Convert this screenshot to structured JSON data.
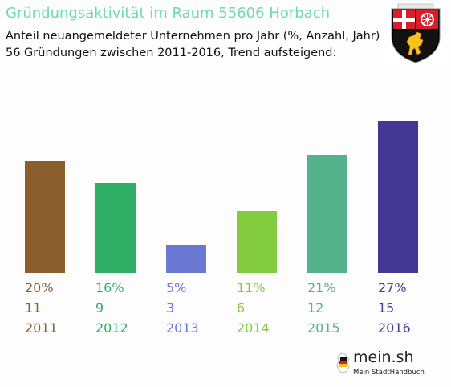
{
  "header": {
    "title": "Gründungsaktivität im Raum 55606 Horbach",
    "subtitle_line1": "Anteil neuangemeldeter Unternehmen pro Jahr (%, Anzahl, Jahr)",
    "subtitle_line2": "56 Gründungen zwischen 2011-2016, Trend aufsteigend:"
  },
  "emblem": {
    "icon": "rhineland-palatinate-coat-of-arms-icon"
  },
  "brand": {
    "word": "mein.sh",
    "tagline": "Mein StadtHandbuch",
    "icon": "germany-map-icon"
  },
  "colors": {
    "title": "#6fd9b3"
  },
  "chart_data": {
    "type": "bar",
    "categories": [
      "2011",
      "2012",
      "2013",
      "2014",
      "2015",
      "2016"
    ],
    "values": [
      20,
      16,
      5,
      11,
      21,
      27
    ],
    "percent_labels": [
      "20%",
      "16%",
      "5%",
      "11%",
      "21%",
      "27%"
    ],
    "counts": [
      "11",
      "9",
      "3",
      "6",
      "12",
      "15"
    ],
    "colors": [
      "#8b5e2e",
      "#2fae66",
      "#6a78d4",
      "#84cc3f",
      "#53b28c",
      "#453894"
    ],
    "ylim": [
      0,
      27
    ],
    "grid": false,
    "legend": "none"
  }
}
